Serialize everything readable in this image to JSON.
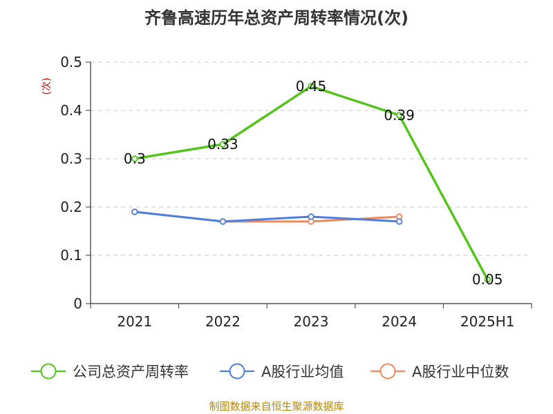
{
  "chart_data": {
    "type": "line",
    "title": "齐鲁高速历年总资产周转率情况(次)",
    "ylabel": "(次)",
    "xlabel": "",
    "categories": [
      "2021",
      "2022",
      "2023",
      "2024",
      "2025H1"
    ],
    "ylim": [
      0,
      0.5
    ],
    "yticks": [
      0,
      0.1,
      0.2,
      0.3,
      0.4,
      0.5
    ],
    "ytick_labels": [
      "0",
      "0.1",
      "0.2",
      "0.3",
      "0.4",
      "0.5"
    ],
    "grid": true,
    "legend_position": "bottom",
    "series": [
      {
        "name": "公司总资产周转率",
        "color": "#52c41a",
        "values": [
          0.3,
          0.33,
          0.45,
          0.39,
          0.05
        ],
        "labels": [
          "0.3",
          "0.33",
          "0.45",
          "0.39",
          "0.05"
        ]
      },
      {
        "name": "A股行业均值",
        "color": "#4a7ee0",
        "values": [
          0.19,
          0.17,
          0.18,
          0.17,
          null
        ]
      },
      {
        "name": "A股行业中位数",
        "color": "#f0875a",
        "values": [
          0.19,
          0.17,
          0.17,
          0.18,
          null
        ]
      }
    ],
    "source": "制图数据来自恒生聚源数据库"
  }
}
